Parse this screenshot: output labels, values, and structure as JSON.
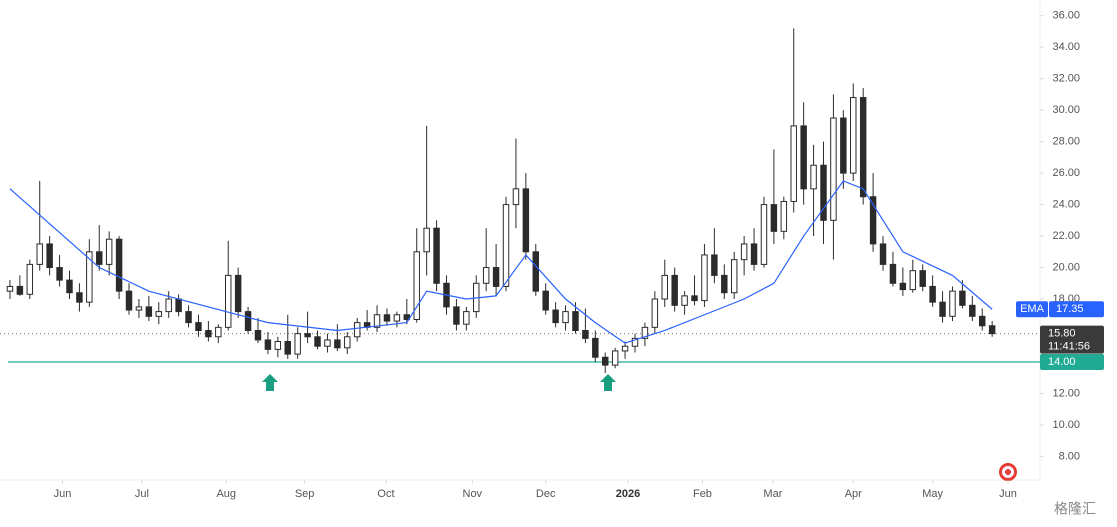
{
  "chart_data": {
    "type": "candlestick",
    "x": [
      0,
      1,
      2,
      3,
      4,
      5,
      6,
      7,
      8,
      9,
      10,
      11,
      12,
      13,
      14,
      15,
      16,
      17,
      18,
      19,
      20,
      21,
      22,
      23,
      24,
      25,
      26,
      27,
      28,
      29,
      30,
      31,
      32,
      33,
      34,
      35,
      36,
      37,
      38,
      39,
      40,
      41,
      42,
      43,
      44,
      45,
      46,
      47,
      48,
      49,
      50,
      51,
      52,
      53,
      54,
      55,
      56,
      57,
      58,
      59,
      60,
      61,
      62,
      63,
      64,
      65,
      66,
      67,
      68,
      69,
      70,
      71,
      72,
      73,
      74,
      75,
      76,
      77,
      78,
      79,
      80,
      81,
      82,
      83,
      84,
      85,
      86,
      87,
      88,
      89,
      90,
      91,
      92,
      93,
      94,
      95,
      96,
      97,
      98,
      99
    ],
    "open": [
      18.5,
      18.8,
      18.3,
      20.2,
      21.5,
      20.0,
      19.2,
      18.4,
      17.8,
      21.0,
      20.2,
      21.8,
      18.5,
      17.3,
      17.5,
      16.9,
      17.2,
      18.0,
      17.2,
      16.5,
      16.0,
      15.6,
      16.2,
      19.5,
      17.2,
      16.0,
      15.4,
      14.8,
      15.3,
      14.5,
      15.8,
      15.6,
      15.0,
      15.4,
      14.9,
      15.6,
      16.5,
      16.2,
      17.0,
      16.6,
      17.0,
      16.7,
      21.0,
      22.5,
      19.0,
      17.5,
      16.4,
      17.2,
      19.0,
      20.0,
      18.8,
      24.0,
      25.0,
      21.0,
      18.5,
      17.3,
      16.5,
      17.2,
      16.0,
      15.5,
      14.3,
      13.8,
      14.7,
      15.0,
      15.5,
      16.2,
      18.0,
      19.5,
      17.6,
      18.2,
      17.9,
      20.8,
      19.5,
      18.4,
      20.5,
      21.5,
      20.2,
      24.0,
      22.3,
      24.2,
      29.0,
      25.0,
      26.5,
      23.0,
      29.5,
      26.0,
      30.8,
      24.5,
      21.5,
      20.2,
      19.0,
      18.6,
      19.8,
      18.8,
      17.8,
      16.9,
      18.5,
      17.6,
      16.9,
      16.3
    ],
    "high": [
      19.2,
      19.5,
      20.5,
      25.5,
      22.0,
      20.8,
      19.8,
      19.0,
      21.8,
      22.7,
      22.3,
      22.0,
      19.0,
      18.0,
      18.2,
      17.8,
      18.5,
      18.3,
      17.6,
      17.0,
      16.6,
      16.4,
      21.7,
      20.0,
      17.5,
      16.8,
      15.9,
      15.6,
      17.0,
      16.2,
      17.2,
      16.0,
      15.8,
      16.4,
      15.9,
      16.8,
      17.3,
      17.6,
      17.4,
      17.2,
      18.0,
      22.5,
      29.0,
      23.0,
      19.5,
      18.0,
      17.5,
      19.5,
      22.5,
      21.5,
      24.5,
      28.2,
      26.0,
      21.5,
      19.0,
      17.8,
      17.6,
      17.8,
      17.4,
      16.0,
      14.6,
      14.9,
      15.3,
      15.8,
      16.5,
      18.5,
      20.5,
      20.0,
      18.5,
      19.5,
      21.5,
      22.5,
      20.2,
      21.0,
      22.0,
      22.5,
      24.5,
      27.5,
      24.5,
      35.2,
      30.5,
      27.8,
      28.0,
      31.0,
      30.0,
      31.7,
      31.4,
      26.0,
      22.0,
      21.0,
      20.0,
      20.5,
      20.2,
      19.5,
      18.5,
      18.8,
      19.2,
      18.2,
      17.4,
      16.6
    ],
    "low": [
      18.0,
      18.2,
      18.0,
      19.8,
      19.5,
      18.8,
      18.0,
      17.2,
      17.5,
      19.8,
      19.5,
      18.0,
      17.0,
      16.8,
      16.6,
      16.4,
      16.8,
      16.9,
      16.2,
      15.6,
      15.3,
      15.2,
      16.0,
      16.8,
      15.8,
      15.2,
      14.5,
      14.3,
      14.2,
      14.2,
      15.2,
      14.8,
      14.6,
      14.7,
      14.5,
      15.3,
      16.0,
      15.9,
      16.3,
      16.2,
      16.4,
      16.5,
      19.5,
      18.5,
      17.0,
      16.0,
      16.0,
      16.8,
      18.5,
      18.2,
      18.5,
      22.5,
      20.5,
      18.2,
      17.0,
      16.2,
      16.0,
      15.8,
      15.2,
      14.0,
      13.3,
      13.6,
      14.2,
      14.6,
      15.0,
      15.8,
      17.5,
      17.2,
      17.0,
      17.6,
      17.5,
      19.0,
      18.0,
      18.0,
      19.5,
      19.8,
      20.0,
      21.5,
      21.8,
      23.5,
      24.0,
      22.0,
      21.5,
      20.5,
      25.0,
      25.5,
      24.0,
      21.0,
      19.8,
      18.8,
      18.2,
      18.4,
      18.5,
      17.5,
      16.5,
      16.6,
      17.4,
      16.6,
      16.0,
      15.6
    ],
    "close": [
      18.8,
      18.3,
      20.2,
      21.5,
      20.0,
      19.2,
      18.4,
      17.8,
      21.0,
      20.2,
      21.8,
      18.5,
      17.3,
      17.5,
      16.9,
      17.2,
      18.0,
      17.2,
      16.5,
      16.0,
      15.6,
      16.2,
      19.5,
      17.2,
      16.0,
      15.4,
      14.8,
      15.3,
      14.5,
      15.8,
      15.6,
      15.0,
      15.4,
      14.9,
      15.6,
      16.5,
      16.2,
      17.0,
      16.6,
      17.0,
      16.7,
      21.0,
      22.5,
      19.0,
      17.5,
      16.4,
      17.2,
      19.0,
      20.0,
      18.8,
      24.0,
      25.0,
      21.0,
      18.5,
      17.3,
      16.5,
      17.2,
      16.0,
      15.5,
      14.3,
      13.8,
      14.7,
      15.0,
      15.5,
      16.2,
      18.0,
      19.5,
      17.6,
      18.2,
      17.9,
      20.8,
      19.5,
      18.4,
      20.5,
      21.5,
      20.2,
      24.0,
      22.3,
      24.2,
      29.0,
      25.0,
      26.5,
      23.0,
      29.5,
      26.0,
      30.8,
      24.5,
      21.5,
      20.2,
      19.0,
      18.6,
      19.8,
      18.8,
      17.8,
      16.9,
      18.5,
      17.6,
      16.9,
      16.3,
      15.8
    ],
    "up_color": "#ffffff",
    "down_color": "#2b2b2b",
    "wick_color": "#2b2b2b",
    "ema": {
      "name": "EMA",
      "color": "#2962ff",
      "x": [
        0,
        9,
        14,
        26,
        33,
        40,
        42,
        46,
        49,
        52,
        56,
        59,
        62,
        66,
        70,
        74,
        77,
        80,
        84,
        86,
        90,
        95,
        99
      ],
      "values": [
        25,
        20,
        18.5,
        16.5,
        16,
        16.5,
        18.5,
        18,
        18.2,
        20.8,
        18,
        16.5,
        15.2,
        16,
        17,
        18,
        19,
        22,
        25.5,
        25,
        21,
        19.5,
        17.35
      ]
    },
    "last_price": {
      "value": 15.8,
      "label": "15.80"
    },
    "countdown": "11:41:56",
    "support": {
      "value": 14,
      "label": "14.00",
      "color": "#22ab94"
    },
    "xlim": [
      -0.5,
      101
    ],
    "xticks": [
      {
        "value": 5.3,
        "label": "Jun"
      },
      {
        "value": 13.3,
        "label": "Jul"
      },
      {
        "value": 21.8,
        "label": "Aug"
      },
      {
        "value": 29.7,
        "label": "Sep"
      },
      {
        "value": 37.9,
        "label": "Oct"
      },
      {
        "value": 46.6,
        "label": "Nov"
      },
      {
        "value": 54.0,
        "label": "Dec"
      },
      {
        "value": 62.3,
        "label": "2026"
      },
      {
        "value": 69.8,
        "label": "Feb"
      },
      {
        "value": 76.9,
        "label": "Mar"
      },
      {
        "value": 85.0,
        "label": "Apr"
      },
      {
        "value": 93.0,
        "label": "May"
      },
      {
        "value": 100.6,
        "label": "Jun"
      }
    ],
    "ylim": [
      6.5,
      37
    ],
    "yticks": [
      {
        "value": 8,
        "label": "8.00"
      },
      {
        "value": 10,
        "label": "10.00"
      },
      {
        "value": 12,
        "label": "12.00"
      },
      {
        "value": 14,
        "label": "14.00"
      },
      {
        "value": 16,
        "label": "16.00"
      },
      {
        "value": 18,
        "label": "18.00"
      },
      {
        "value": 20,
        "label": "20.00"
      },
      {
        "value": 22,
        "label": "22.00"
      },
      {
        "value": 24,
        "label": "24.00"
      },
      {
        "value": 26,
        "label": "26.00"
      },
      {
        "value": 28,
        "label": "28.00"
      },
      {
        "value": 30,
        "label": "30.00"
      },
      {
        "value": 32,
        "label": "32.00"
      },
      {
        "value": 34,
        "label": "34.00"
      },
      {
        "value": 36,
        "label": "36.00"
      }
    ],
    "watermark": "格隆汇"
  }
}
